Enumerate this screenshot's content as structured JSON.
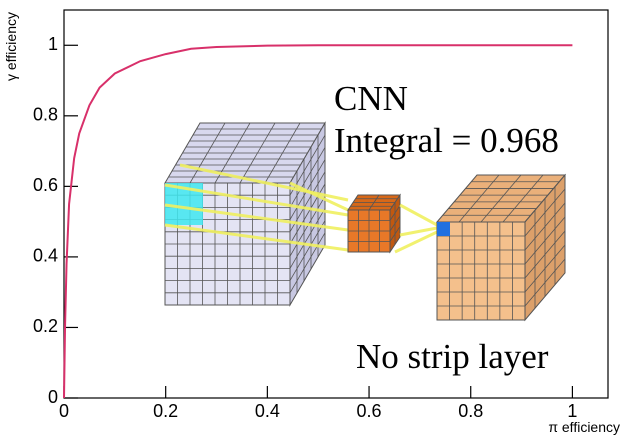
{
  "chart_data": {
    "type": "line",
    "x_label": "π efficiency",
    "y_label": "γ efficiency",
    "annotations": [
      "CNN",
      "Integral = 0.968",
      "No strip layer"
    ],
    "x": [
      0,
      0.002,
      0.005,
      0.01,
      0.02,
      0.03,
      0.05,
      0.07,
      0.1,
      0.15,
      0.2,
      0.25,
      0.3,
      0.4,
      0.5,
      0.7,
      1
    ],
    "series": [
      {
        "color": "#d8306a",
        "values": [
          0,
          0.2,
          0.38,
          0.55,
          0.68,
          0.75,
          0.83,
          0.88,
          0.92,
          0.955,
          0.975,
          0.99,
          0.995,
          0.999,
          1,
          1,
          1
        ]
      }
    ],
    "xlim": [
      0,
      1.07
    ],
    "ylim": [
      0,
      1.1
    ],
    "xticks": [
      0,
      0.2,
      0.4,
      0.6,
      0.8,
      1
    ],
    "yticks": [
      0,
      0.2,
      0.4,
      0.6,
      0.8,
      1
    ]
  }
}
